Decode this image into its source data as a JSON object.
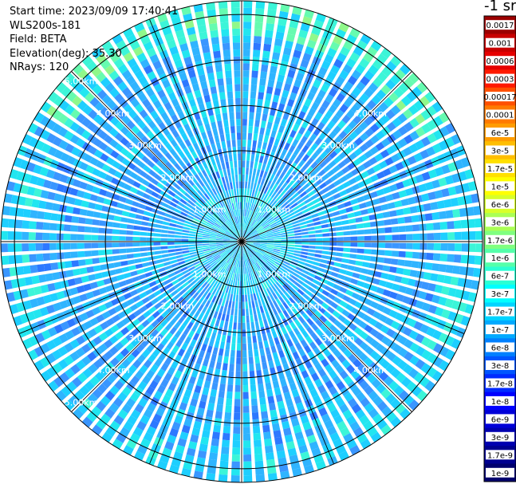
{
  "header": {
    "start_time": "Start time: 2023/09/09 17:40:41",
    "device": "WLS200s-181",
    "field": "Field: BETA",
    "elevation": "Elevation(deg): 35.30",
    "nrays": "NRays: 120"
  },
  "colorbar": {
    "unit_label": "-1 sr",
    "ticks": [
      {
        "label": "0.0017",
        "color": "#9b0000"
      },
      {
        "label": "0.001",
        "color": "#c80000"
      },
      {
        "label": "0.0006",
        "color": "#e60000"
      },
      {
        "label": "0.0003",
        "color": "#ff1a00"
      },
      {
        "label": "0.00017",
        "color": "#ff5000"
      },
      {
        "label": "0.0001",
        "color": "#ff7a00"
      },
      {
        "label": "6e-5",
        "color": "#ff9c00"
      },
      {
        "label": "3e-5",
        "color": "#ffbe00"
      },
      {
        "label": "1.7e-5",
        "color": "#ffe000"
      },
      {
        "label": "1e-5",
        "color": "#ffff00"
      },
      {
        "label": "6e-6",
        "color": "#d8ff2a"
      },
      {
        "label": "3e-6",
        "color": "#aaff55"
      },
      {
        "label": "1.7e-6",
        "color": "#80ff80"
      },
      {
        "label": "1e-6",
        "color": "#55ffaa"
      },
      {
        "label": "6e-7",
        "color": "#2affd4"
      },
      {
        "label": "3e-7",
        "color": "#00ffff"
      },
      {
        "label": "1.7e-7",
        "color": "#00d4ff"
      },
      {
        "label": "1e-7",
        "color": "#00aaff"
      },
      {
        "label": "6e-8",
        "color": "#0080ff"
      },
      {
        "label": "3e-8",
        "color": "#0055ff"
      },
      {
        "label": "1.7e-8",
        "color": "#002aff"
      },
      {
        "label": "1e-8",
        "color": "#0000ff"
      },
      {
        "label": "6e-9",
        "color": "#0000d8"
      },
      {
        "label": "3e-9",
        "color": "#0000b0"
      },
      {
        "label": "1.7e-9",
        "color": "#000090"
      },
      {
        "label": "1e-9",
        "color": "#00006e"
      }
    ]
  },
  "chart_data": {
    "type": "heatmap",
    "projection": "polar",
    "range_rings_km": [
      1,
      2,
      3,
      4,
      5
    ],
    "ring_labels": [
      "1.00km",
      "2.00km",
      "3.00km",
      "4.00km",
      "5.00km"
    ],
    "max_range_km": 5.3,
    "radial_spokes": 16,
    "grid": true,
    "colormap": "jet",
    "legend_position": "right"
  }
}
